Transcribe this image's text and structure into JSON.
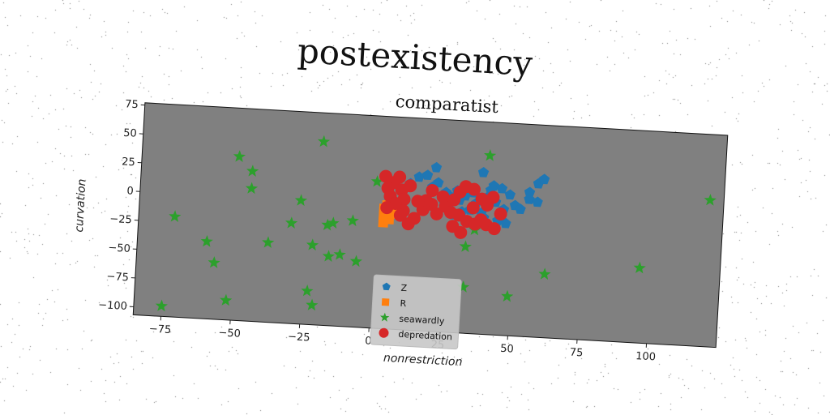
{
  "suptitle": "postexistency",
  "chart_data": {
    "type": "scatter",
    "title": "comparatist",
    "xlabel": "nonrestriction",
    "ylabel": "curvation",
    "xlim": [
      -85,
      125
    ],
    "ylim": [
      -107,
      77
    ],
    "xticks": [
      -75,
      -50,
      -25,
      0,
      25,
      50,
      75,
      100
    ],
    "yticks": [
      -100,
      -75,
      -50,
      -25,
      0,
      25,
      50,
      75
    ],
    "grid": false,
    "legend_position": "bottom-center",
    "plot_background": "#808080",
    "series": [
      {
        "name": "Z",
        "color": "#1f77b4",
        "marker": "pentagon",
        "points": [
          [
            12,
            20
          ],
          [
            15,
            26
          ],
          [
            18,
            28
          ],
          [
            20,
            18
          ],
          [
            21,
            35
          ],
          [
            22,
            22
          ],
          [
            24,
            8
          ],
          [
            25,
            14
          ],
          [
            27,
            10
          ],
          [
            29,
            16
          ],
          [
            30,
            8
          ],
          [
            32,
            12
          ],
          [
            33,
            20
          ],
          [
            35,
            15
          ],
          [
            36,
            6
          ],
          [
            38,
            -2
          ],
          [
            38,
            33
          ],
          [
            40,
            12
          ],
          [
            41,
            18
          ],
          [
            42,
            22
          ],
          [
            43,
            8
          ],
          [
            45,
            -5
          ],
          [
            45,
            20
          ],
          [
            46,
            2
          ],
          [
            47,
            -10
          ],
          [
            48,
            15
          ],
          [
            50,
            6
          ],
          [
            52,
            3
          ],
          [
            55,
            12
          ],
          [
            55,
            18
          ],
          [
            58,
            10
          ],
          [
            58,
            26
          ],
          [
            60,
            30
          ],
          [
            18,
            5
          ],
          [
            26,
            2
          ],
          [
            34,
            0
          ],
          [
            28,
            -5
          ],
          [
            39,
            -6
          ],
          [
            44,
            -8
          ],
          [
            31,
            -2
          ]
        ]
      },
      {
        "name": "R",
        "color": "#ff7f0e",
        "marker": "square",
        "points": [
          [
            3,
            -15
          ],
          [
            3,
            -10
          ],
          [
            4,
            -8
          ],
          [
            5,
            -5
          ],
          [
            3,
            -3
          ],
          [
            6,
            -2
          ],
          [
            4,
            0
          ],
          [
            5,
            3
          ],
          [
            7,
            2
          ],
          [
            5,
            -12
          ],
          [
            8,
            0
          ],
          [
            6,
            -7
          ]
        ]
      },
      {
        "name": "seawardly",
        "color": "#2ca02c",
        "marker": "star",
        "points": [
          [
            -20,
            52
          ],
          [
            -50,
            35
          ],
          [
            -45,
            23
          ],
          [
            -45,
            8
          ],
          [
            -27,
            0
          ],
          [
            -72,
            -20
          ],
          [
            -30,
            -20
          ],
          [
            -17,
            -20
          ],
          [
            -15,
            -18
          ],
          [
            -8,
            -15
          ],
          [
            -60,
            -40
          ],
          [
            -38,
            -38
          ],
          [
            -22,
            -38
          ],
          [
            -16,
            -47
          ],
          [
            -12,
            -45
          ],
          [
            -6,
            -50
          ],
          [
            -57,
            -58
          ],
          [
            -23,
            -78
          ],
          [
            -52,
            -90
          ],
          [
            -21,
            -90
          ],
          [
            -75,
            -98
          ],
          [
            0,
            20
          ],
          [
            40,
            48
          ],
          [
            36,
            -17
          ],
          [
            33,
            -32
          ],
          [
            33,
            -67
          ],
          [
            49,
            -73
          ],
          [
            62,
            -52
          ],
          [
            96,
            -42
          ],
          [
            120,
            20
          ]
        ]
      },
      {
        "name": "depredation",
        "color": "#d62728",
        "marker": "circle",
        "points": [
          [
            3,
            25
          ],
          [
            8,
            25
          ],
          [
            6,
            20
          ],
          [
            4,
            15
          ],
          [
            9,
            14
          ],
          [
            12,
            18
          ],
          [
            5,
            8
          ],
          [
            10,
            6
          ],
          [
            7,
            2
          ],
          [
            4,
            -2
          ],
          [
            10,
            -4
          ],
          [
            14,
            -10
          ],
          [
            17,
            -2
          ],
          [
            20,
            3
          ],
          [
            22,
            -5
          ],
          [
            25,
            2
          ],
          [
            28,
            8
          ],
          [
            30,
            15
          ],
          [
            32,
            20
          ],
          [
            35,
            18
          ],
          [
            38,
            10
          ],
          [
            40,
            5
          ],
          [
            42,
            12
          ],
          [
            30,
            -5
          ],
          [
            33,
            -10
          ],
          [
            36,
            -12
          ],
          [
            40,
            -12
          ],
          [
            43,
            -15
          ],
          [
            38,
            -8
          ],
          [
            45,
            -2
          ],
          [
            28,
            -15
          ],
          [
            31,
            -20
          ],
          [
            12,
            -15
          ],
          [
            18,
            6
          ],
          [
            24,
            10
          ],
          [
            27,
            -3
          ],
          [
            35,
            2
          ],
          [
            20,
            15
          ],
          [
            15,
            5
          ],
          [
            9,
            -8
          ]
        ]
      }
    ]
  }
}
